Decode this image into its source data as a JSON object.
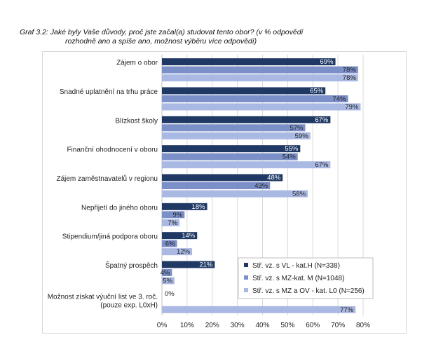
{
  "caption": {
    "line1": "Graf 3.2: Jaké byly Vaše důvody, proč jste začal(a) studovat tento obor? (v % odpovědí",
    "line2": "rozhodně ano a spíše ano, možnost výběru více odpovědí)"
  },
  "colors": {
    "series1": "#1f3864",
    "series2": "#7b8fc9",
    "series3": "#aab9e3",
    "gridline": "#d9d9d9"
  },
  "chart_data": {
    "type": "bar",
    "orientation": "horizontal",
    "title": "",
    "xlabel": "",
    "ylabel": "",
    "xlim": [
      0,
      80
    ],
    "x_ticks": [
      "0%",
      "10%",
      "20%",
      "30%",
      "40%",
      "50%",
      "60%",
      "70%",
      "80%"
    ],
    "grid": true,
    "legend_position": "bottom-right",
    "categories": [
      "Zájem o obor",
      "Snadné uplatnění na trhu práce",
      "Blízkost školy",
      "Finanční ohodnocení v oboru",
      "Zájem zaměstnavatelů v regionu",
      "Nepřijetí do jiného oboru",
      "Stipendium/jiná podpora oboru",
      "Špatný prospěch",
      "Možnost získat výuční list ve 3. roč. (pouze exp. L0xH)"
    ],
    "series": [
      {
        "name": "Stř. vz. s VL - kat.H (N=338)",
        "values": [
          69,
          65,
          67,
          55,
          48,
          18,
          14,
          21,
          0
        ]
      },
      {
        "name": "Stř. vz. s MZ-kat. M (N=1048)",
        "values": [
          78,
          74,
          57,
          54,
          43,
          9,
          6,
          4,
          null
        ]
      },
      {
        "name": "Stř. vz. s MZ a OV - kat. L0 (N=256)",
        "values": [
          78,
          79,
          59,
          67,
          58,
          7,
          12,
          5,
          77
        ]
      }
    ]
  }
}
